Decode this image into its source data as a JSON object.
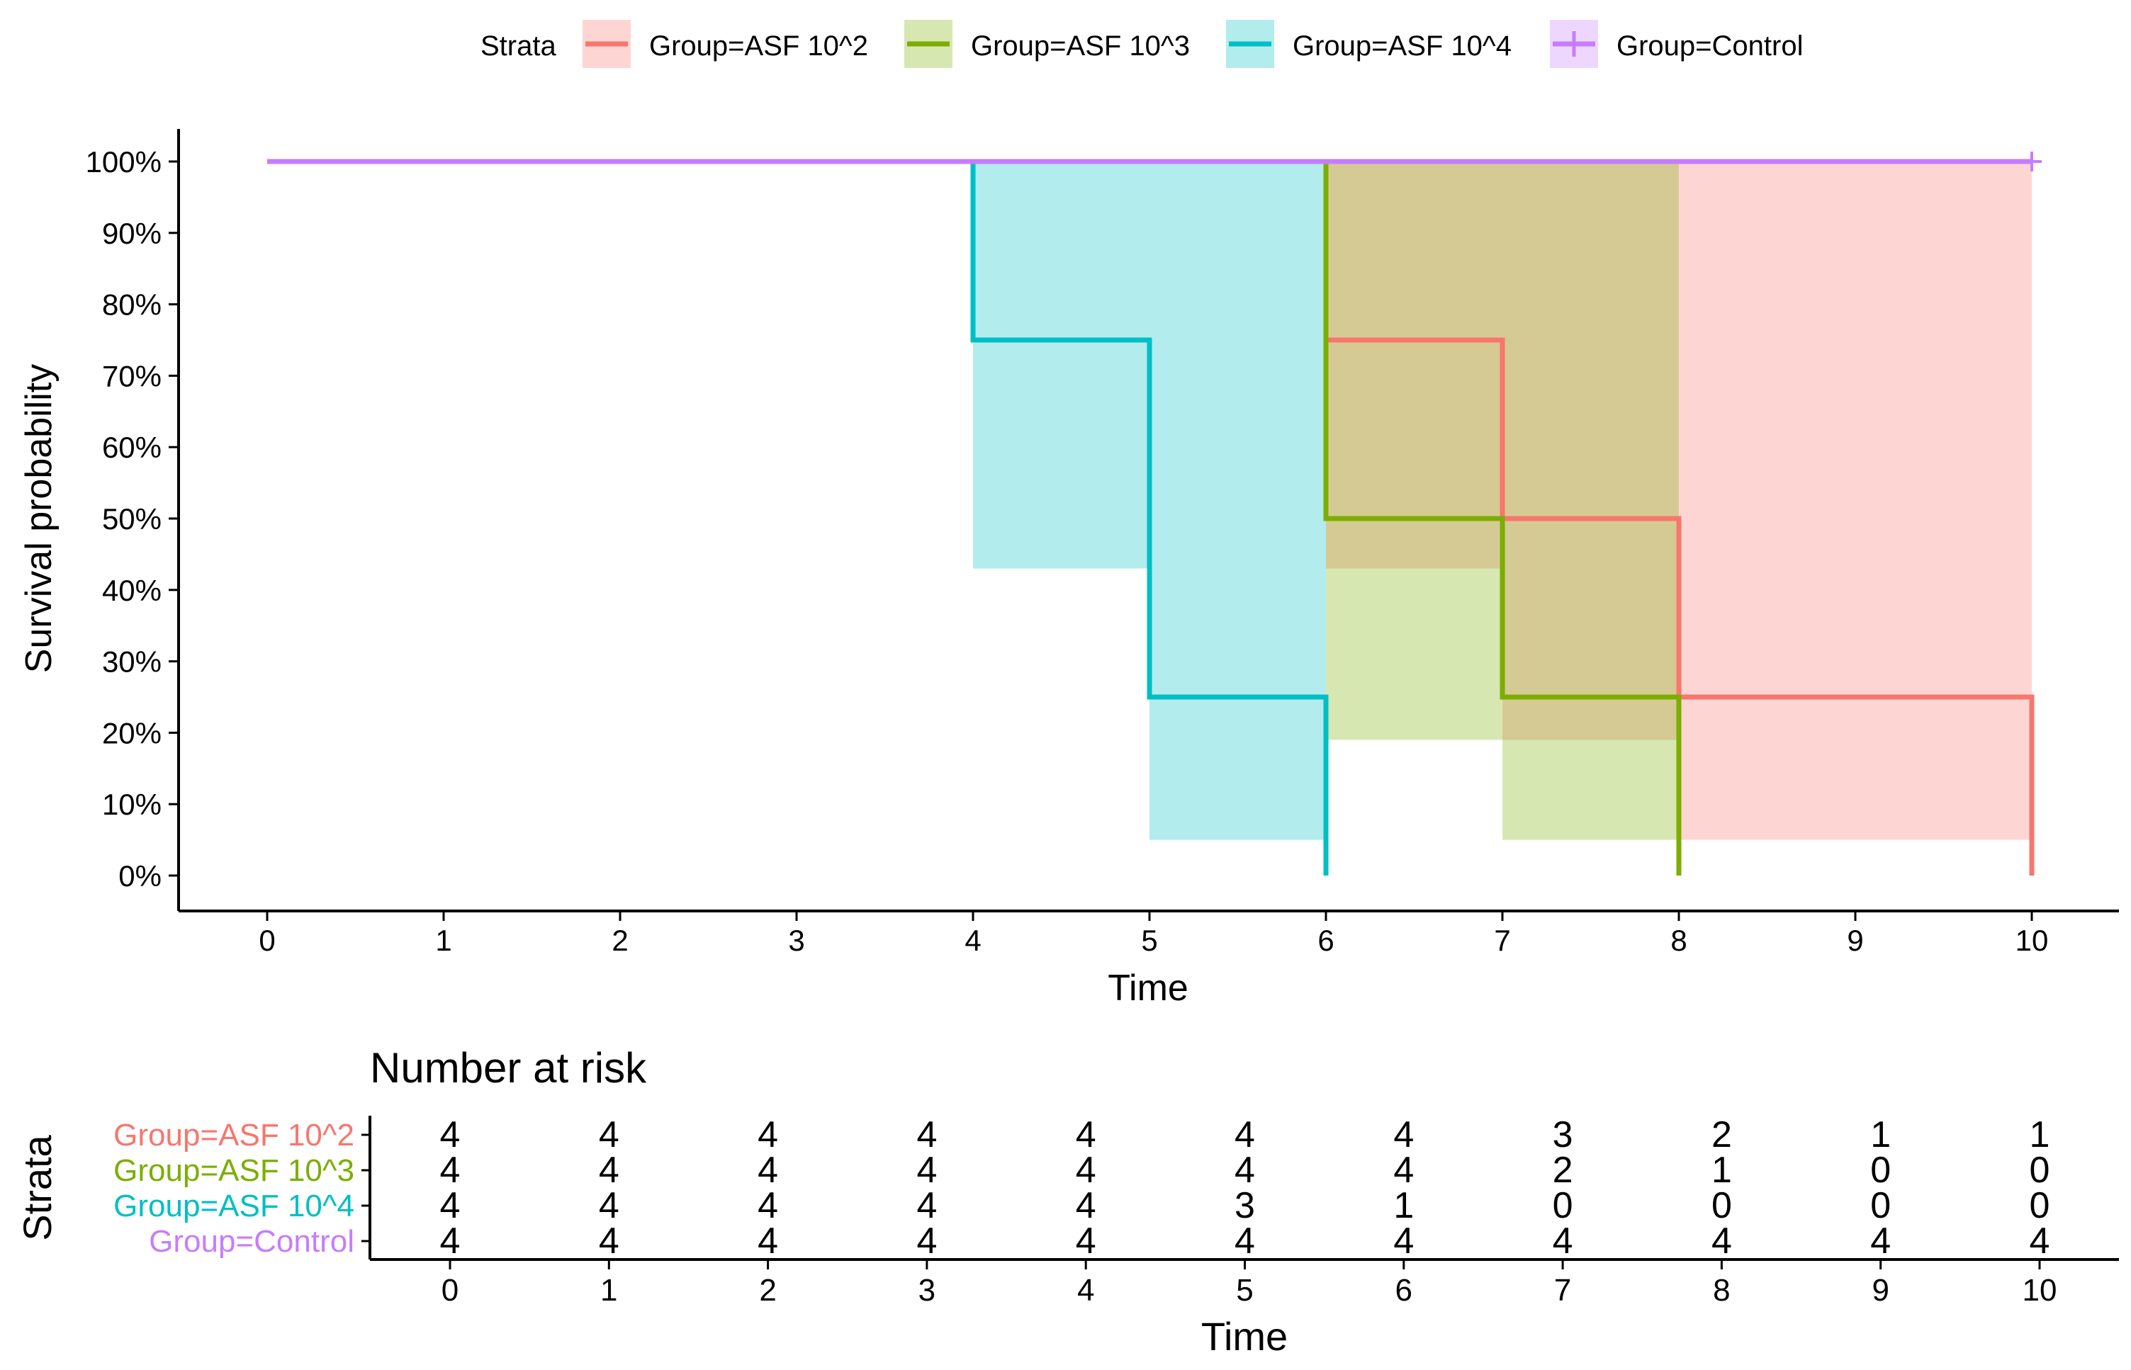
{
  "legend": {
    "title": "Strata",
    "items": [
      {
        "label": "Group=ASF 10^2",
        "color": "#F8766D"
      },
      {
        "label": "Group=ASF 10^3",
        "color": "#7CAE00"
      },
      {
        "label": "Group=ASF 10^4",
        "color": "#00BFC4"
      },
      {
        "label": "Group=Control",
        "color": "#C77CFF"
      }
    ]
  },
  "chart_data": [
    {
      "type": "line",
      "subtype": "kaplan-meier",
      "title": "",
      "xlabel": "Time",
      "ylabel": "Survival probability",
      "xlim": [
        0,
        10
      ],
      "ylim": [
        0,
        1
      ],
      "x_ticks": [
        "0",
        "1",
        "2",
        "3",
        "4",
        "5",
        "6",
        "7",
        "8",
        "9",
        "10"
      ],
      "y_ticks": [
        "0%",
        "10%",
        "20%",
        "30%",
        "40%",
        "50%",
        "60%",
        "70%",
        "80%",
        "90%",
        "100%"
      ],
      "series": [
        {
          "name": "Group=ASF 10^2",
          "color": "#F8766D",
          "step_x": [
            0,
            6,
            7,
            8,
            10
          ],
          "step_y": [
            1.0,
            0.75,
            0.5,
            0.25,
            0.0
          ],
          "ci_bands": [
            {
              "x0": 6,
              "x1": 7,
              "lower": 0.43,
              "upper": 1.0
            },
            {
              "x0": 7,
              "x1": 8,
              "lower": 0.19,
              "upper": 1.0
            },
            {
              "x0": 8,
              "x1": 10,
              "lower": 0.05,
              "upper": 1.0
            }
          ]
        },
        {
          "name": "Group=ASF 10^3",
          "color": "#7CAE00",
          "step_x": [
            0,
            6,
            7,
            8
          ],
          "step_y": [
            1.0,
            0.5,
            0.25,
            0.0
          ],
          "ci_bands": [
            {
              "x0": 6,
              "x1": 7,
              "lower": 0.19,
              "upper": 1.0
            },
            {
              "x0": 7,
              "x1": 8,
              "lower": 0.05,
              "upper": 1.0
            }
          ]
        },
        {
          "name": "Group=ASF 10^4",
          "color": "#00BFC4",
          "step_x": [
            0,
            4,
            5,
            6
          ],
          "step_y": [
            1.0,
            0.75,
            0.25,
            0.0
          ],
          "ci_bands": [
            {
              "x0": 4,
              "x1": 5,
              "lower": 0.43,
              "upper": 1.0
            },
            {
              "x0": 5,
              "x1": 6,
              "lower": 0.05,
              "upper": 1.0
            }
          ]
        },
        {
          "name": "Group=Control",
          "color": "#C77CFF",
          "step_x": [
            0,
            10
          ],
          "step_y": [
            1.0,
            1.0
          ],
          "censor_marks": [
            10
          ],
          "ci_bands": []
        }
      ]
    },
    {
      "type": "table",
      "title": "Number at risk",
      "xlabel": "Time",
      "ylabel": "Strata",
      "x_ticks": [
        "0",
        "1",
        "2",
        "3",
        "4",
        "5",
        "6",
        "7",
        "8",
        "9",
        "10"
      ],
      "rows": [
        {
          "label": "Group=ASF 10^2",
          "color": "#F8766D",
          "values": [
            "4",
            "4",
            "4",
            "4",
            "4",
            "4",
            "4",
            "3",
            "2",
            "1",
            "1"
          ]
        },
        {
          "label": "Group=ASF 10^3",
          "color": "#7CAE00",
          "values": [
            "4",
            "4",
            "4",
            "4",
            "4",
            "4",
            "4",
            "2",
            "1",
            "0",
            "0"
          ]
        },
        {
          "label": "Group=ASF 10^4",
          "color": "#00BFC4",
          "values": [
            "4",
            "4",
            "4",
            "4",
            "4",
            "3",
            "1",
            "0",
            "0",
            "0",
            "0"
          ]
        },
        {
          "label": "Group=Control",
          "color": "#C77CFF",
          "values": [
            "4",
            "4",
            "4",
            "4",
            "4",
            "4",
            "4",
            "4",
            "4",
            "4",
            "4"
          ]
        }
      ]
    }
  ]
}
